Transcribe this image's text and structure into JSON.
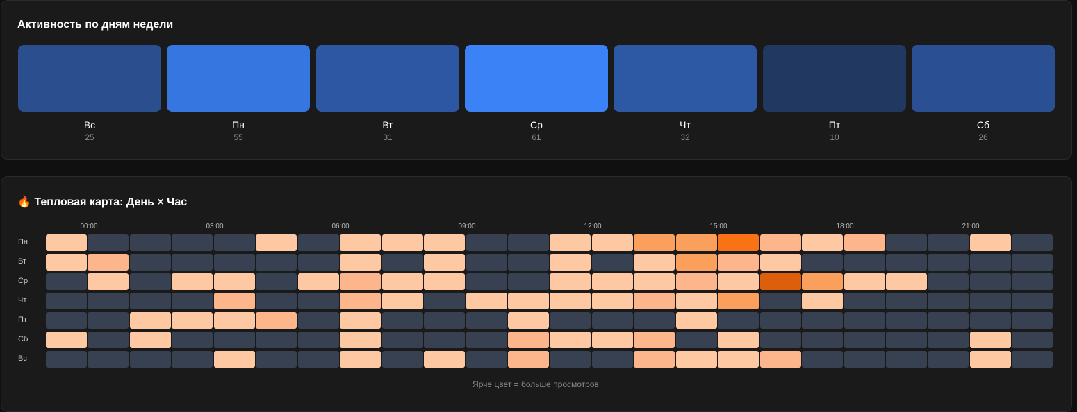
{
  "weekly": {
    "title": "Активность по дням недели",
    "days": [
      {
        "label": "Вс",
        "count": "25",
        "color": "#2a4e8e"
      },
      {
        "label": "Пн",
        "count": "55",
        "color": "#3676e0"
      },
      {
        "label": "Вт",
        "count": "31",
        "color": "#2d57a2"
      },
      {
        "label": "Ср",
        "count": "61",
        "color": "#3b82f6"
      },
      {
        "label": "Чт",
        "count": "32",
        "color": "#2d58a4"
      },
      {
        "label": "Пт",
        "count": "10",
        "color": "#213961"
      },
      {
        "label": "Сб",
        "count": "26",
        "color": "#2b4f93"
      }
    ]
  },
  "heatmap": {
    "title": "🔥 Тепловая карта: День × Час",
    "hour_labels": [
      "00:00",
      "03:00",
      "06:00",
      "09:00",
      "12:00",
      "15:00",
      "18:00",
      "21:00"
    ],
    "note": "Ярче цвет = больше просмотров",
    "empty_color": "#374151",
    "level_colors": [
      "#374151",
      "#fec8a3",
      "#fdb58b",
      "#fb9f5c",
      "#f97316",
      "#dd5f0b"
    ]
  },
  "chart_data": [
    {
      "type": "bar",
      "title": "Активность по дням недели",
      "categories": [
        "Вс",
        "Пн",
        "Вт",
        "Ср",
        "Чт",
        "Пт",
        "Сб"
      ],
      "values": [
        25,
        55,
        31,
        61,
        32,
        10,
        26
      ]
    },
    {
      "type": "heatmap",
      "title": "🔥 Тепловая карта: День × Час",
      "rows": [
        "Пн",
        "Вт",
        "Ср",
        "Чт",
        "Пт",
        "Сб",
        "Вс"
      ],
      "columns": [
        "0",
        "1",
        "2",
        "3",
        "4",
        "5",
        "6",
        "7",
        "8",
        "9",
        "10",
        "11",
        "12",
        "13",
        "14",
        "15",
        "16",
        "17",
        "18",
        "19",
        "20",
        "21",
        "22",
        "23"
      ],
      "values": [
        [
          1,
          0,
          0,
          0,
          0,
          1,
          0,
          1,
          1,
          1,
          0,
          0,
          1,
          1,
          3,
          3,
          4,
          2,
          1,
          2,
          0,
          0,
          1,
          0
        ],
        [
          1,
          2,
          0,
          0,
          0,
          0,
          0,
          1,
          0,
          1,
          0,
          0,
          1,
          0,
          1,
          3,
          2,
          1,
          0,
          0,
          0,
          0,
          0,
          0
        ],
        [
          0,
          1,
          0,
          1,
          1,
          0,
          1,
          2,
          1,
          1,
          0,
          0,
          1,
          1,
          1,
          2,
          1,
          5,
          3,
          1,
          1,
          0,
          0,
          0
        ],
        [
          0,
          0,
          0,
          0,
          2,
          0,
          0,
          2,
          1,
          0,
          1,
          1,
          1,
          1,
          2,
          1,
          3,
          0,
          1,
          0,
          0,
          0,
          0,
          0
        ],
        [
          0,
          0,
          1,
          1,
          1,
          2,
          0,
          1,
          0,
          0,
          0,
          1,
          0,
          0,
          0,
          1,
          0,
          0,
          0,
          0,
          0,
          0,
          0,
          0
        ],
        [
          1,
          0,
          1,
          0,
          0,
          0,
          0,
          1,
          0,
          0,
          0,
          2,
          1,
          1,
          2,
          0,
          1,
          0,
          0,
          0,
          0,
          0,
          1,
          0
        ],
        [
          0,
          0,
          0,
          0,
          1,
          0,
          0,
          1,
          0,
          1,
          0,
          2,
          0,
          0,
          2,
          1,
          1,
          2,
          0,
          0,
          0,
          0,
          1,
          0
        ]
      ],
      "value_scale": "relative intensity 0 (none) – 5 (max)"
    }
  ]
}
